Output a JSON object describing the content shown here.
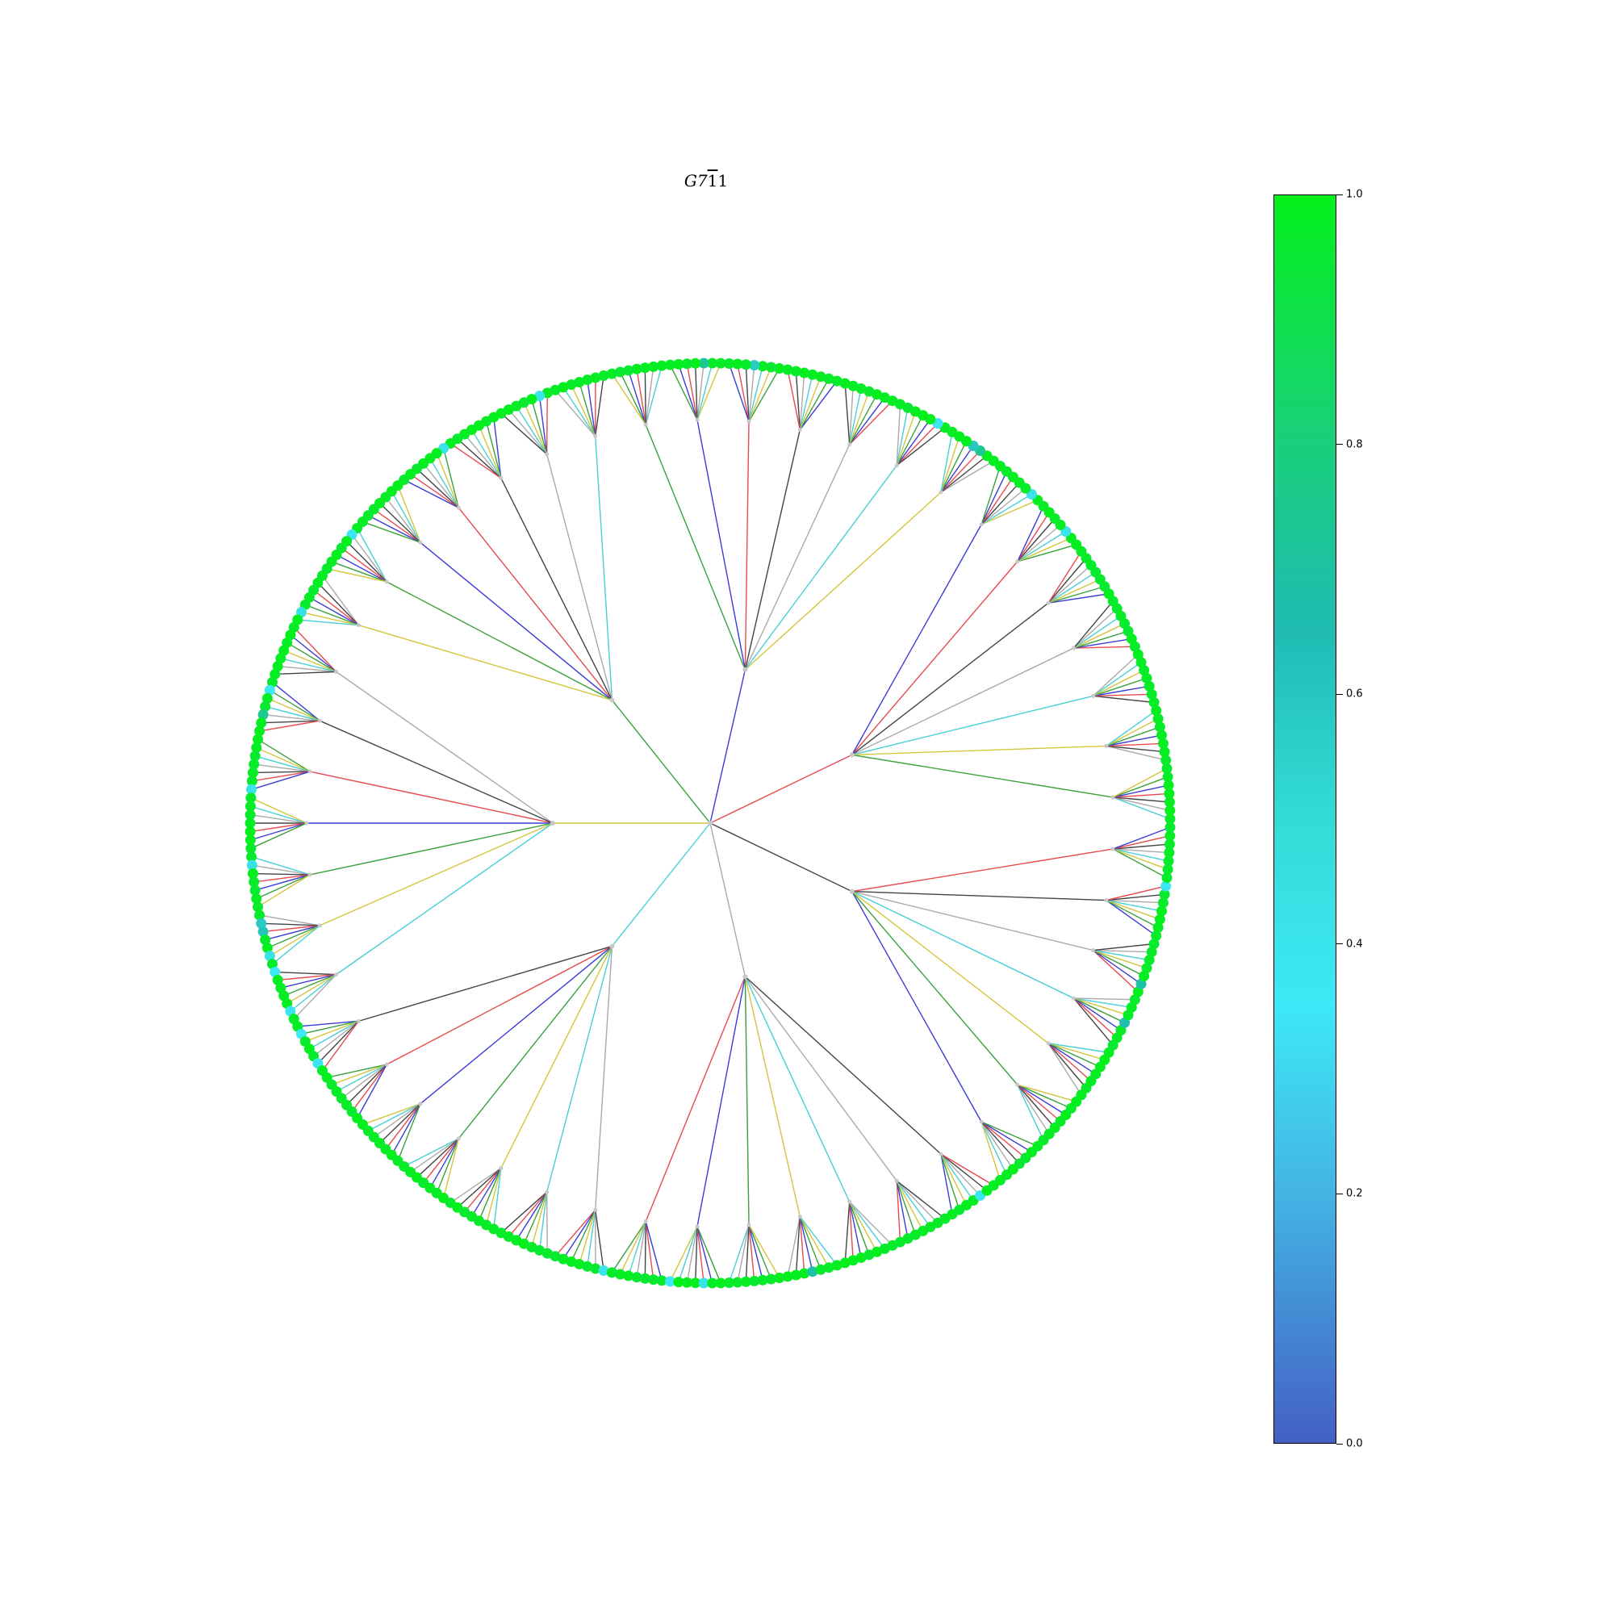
{
  "figure": {
    "title_base": "G7",
    "title_bar": "1",
    "title_tail": "1"
  },
  "tree": {
    "levels": 3,
    "branching": 7,
    "leaf_count": 343,
    "edge_palette": [
      "#e8494f",
      "#3b3bd8",
      "#3aa13a",
      "#d4c53c",
      "#46cfd6",
      "#aaaaaa",
      "#444444"
    ],
    "leaf_color_scale": "colorbar",
    "inner_node_color": "#c8c8c8"
  },
  "colorbar": {
    "min": 0.0,
    "max": 1.0,
    "ticks": [
      "0.0",
      "0.2",
      "0.4",
      "0.6",
      "0.8",
      "1.0"
    ],
    "stops": [
      {
        "value": 0.0,
        "color": "#4460c4"
      },
      {
        "value": 0.2,
        "color": "#43b4e4"
      },
      {
        "value": 0.35,
        "color": "#3ee8f6"
      },
      {
        "value": 0.5,
        "color": "#33dcd6"
      },
      {
        "value": 0.65,
        "color": "#20bcb4"
      },
      {
        "value": 0.8,
        "color": "#1acf7c"
      },
      {
        "value": 1.0,
        "color": "#04f01c"
      }
    ]
  }
}
